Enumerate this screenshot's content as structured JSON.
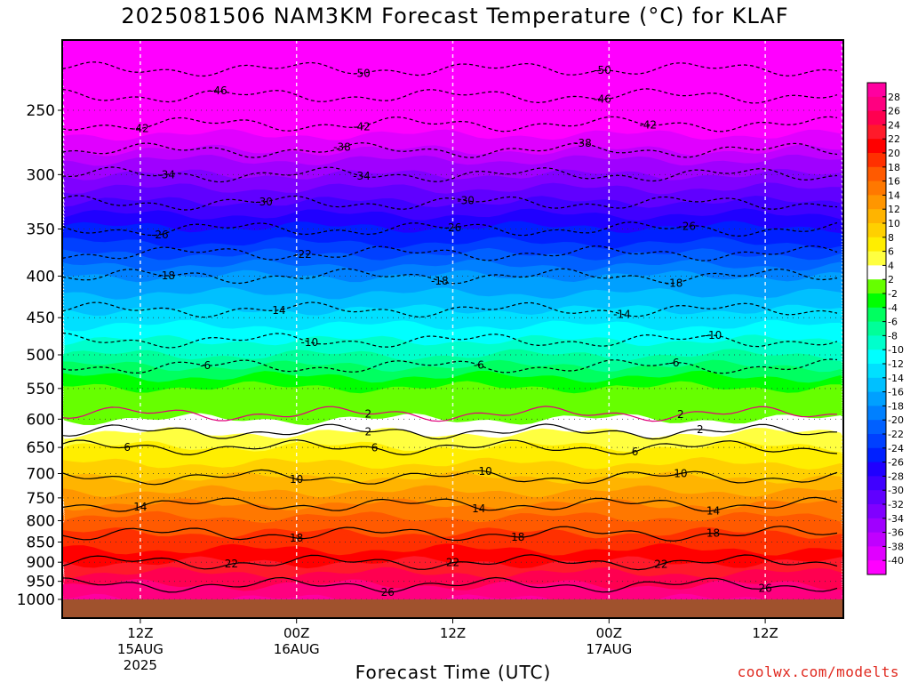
{
  "title": "2025081506 NAM3KM Forecast Temperature (°C) for KLAF",
  "credit": "coolwx.com/modelts",
  "chart_data": {
    "type": "heatmap",
    "title": "2025081506 NAM3KM Forecast Temperature (°C) for KLAF",
    "xlabel": "Forecast Time (UTC)",
    "ylabel": "",
    "x_unit": "hours from 2025-08-15 06Z",
    "xlim": [
      0,
      60
    ],
    "y_scale": "log pressure",
    "ylim": [
      1050,
      200
    ],
    "x_ticks": [
      {
        "x": 6,
        "lines": [
          "12Z",
          "15AUG",
          "2025"
        ]
      },
      {
        "x": 18,
        "lines": [
          "00Z",
          "16AUG"
        ]
      },
      {
        "x": 30,
        "lines": [
          "12Z"
        ]
      },
      {
        "x": 42,
        "lines": [
          "00Z",
          "17AUG"
        ]
      },
      {
        "x": 54,
        "lines": [
          "12Z"
        ]
      }
    ],
    "y_ticks": [
      250,
      300,
      350,
      400,
      450,
      500,
      550,
      600,
      650,
      700,
      750,
      800,
      850,
      900,
      950,
      1000
    ],
    "colorbar": {
      "labels": [
        28,
        26,
        24,
        22,
        20,
        18,
        16,
        14,
        12,
        10,
        8,
        6,
        4,
        2,
        -2,
        -4,
        -6,
        -8,
        -10,
        -12,
        -14,
        -16,
        -18,
        -20,
        -22,
        -24,
        -26,
        -28,
        -30,
        -32,
        -34,
        -36,
        -38,
        -40
      ],
      "colors": [
        "#ff00a0",
        "#ff0080",
        "#ff0050",
        "#ff1a2a",
        "#ff0000",
        "#ff3000",
        "#ff5a00",
        "#ff7800",
        "#ff9600",
        "#ffb400",
        "#ffd000",
        "#ffee00",
        "#ffff40",
        "#ffffff",
        "#66ff00",
        "#00ff00",
        "#00ff60",
        "#00ff99",
        "#00ffcc",
        "#00ffff",
        "#00e0ff",
        "#00c0ff",
        "#00a0ff",
        "#0080ff",
        "#0060ff",
        "#0040ff",
        "#0020ff",
        "#2000ff",
        "#4000ff",
        "#6000ff",
        "#8000ff",
        "#a000ff",
        "#c000ff",
        "#e000ff",
        "#ff00ff"
      ]
    },
    "contours": [
      {
        "value": -50,
        "labels_at": [
          23,
          41.5
        ]
      },
      {
        "value": -46,
        "labels_at": [
          12,
          41.5
        ]
      },
      {
        "value": -42,
        "labels_at": [
          6,
          23,
          45
        ]
      },
      {
        "value": -38,
        "labels_at": [
          21.5,
          40
        ]
      },
      {
        "value": -34,
        "labels_at": [
          8,
          23
        ]
      },
      {
        "value": -30,
        "labels_at": [
          15.5,
          31
        ]
      },
      {
        "value": -26,
        "labels_at": [
          7.5,
          30,
          48
        ]
      },
      {
        "value": -22,
        "labels_at": [
          18.5
        ]
      },
      {
        "value": -18,
        "labels_at": [
          8,
          29,
          47
        ]
      },
      {
        "value": -14,
        "labels_at": [
          16.5,
          43
        ]
      },
      {
        "value": -10,
        "labels_at": [
          19,
          50
        ]
      },
      {
        "value": -6,
        "labels_at": [
          11,
          32,
          47
        ]
      },
      {
        "value": 2,
        "labels_at": [
          23.5,
          47.5
        ]
      },
      {
        "value": 2,
        "labels_at": [
          23.5,
          49
        ]
      },
      {
        "value": 6,
        "labels_at": [
          5,
          24,
          44
        ]
      },
      {
        "value": 10,
        "labels_at": [
          18,
          32.5,
          47.5
        ]
      },
      {
        "value": 14,
        "labels_at": [
          6,
          32,
          50
        ]
      },
      {
        "value": 18,
        "labels_at": [
          18,
          35,
          50
        ]
      },
      {
        "value": 22,
        "labels_at": [
          13,
          30,
          46
        ]
      },
      {
        "value": 26,
        "labels_at": [
          25,
          54
        ]
      }
    ],
    "grid": true,
    "legend": "right colorbar"
  }
}
